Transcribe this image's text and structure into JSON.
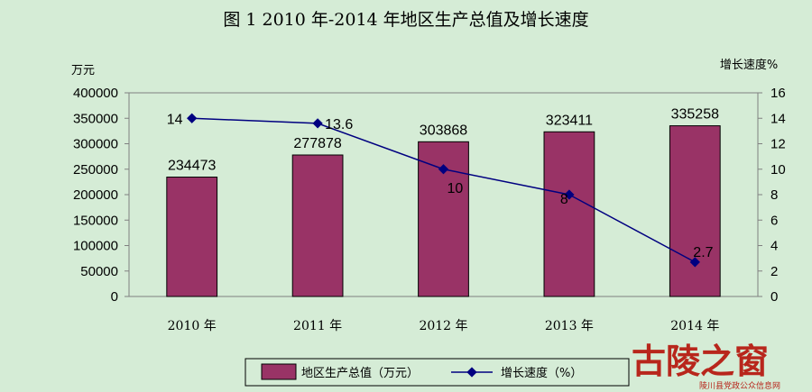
{
  "chart_data": {
    "type": "bar",
    "title": "图 1 2010 年-2014 年地区生产总值及增长速度",
    "categories": [
      "2010 年",
      "2011 年",
      "2012 年",
      "2013 年",
      "2014 年"
    ],
    "y_left_unit": "万元",
    "y_right_unit": "增长速度%",
    "ylim_left": [
      0,
      400000
    ],
    "ylim_right": [
      0,
      16
    ],
    "left_ticks": [
      "0",
      "50000",
      "100000",
      "150000",
      "200000",
      "250000",
      "300000",
      "350000",
      "400000"
    ],
    "right_ticks": [
      "0",
      "2",
      "4",
      "6",
      "8",
      "10",
      "12",
      "14",
      "16"
    ],
    "series": [
      {
        "name": "地区生产总值（万元）",
        "type": "bar",
        "axis": "left",
        "values": [
          234473,
          277878,
          303868,
          323411,
          335258
        ],
        "labels": [
          "234473",
          "277878",
          "303868",
          "323411",
          "335258"
        ]
      },
      {
        "name": "增长速度（%）",
        "type": "line",
        "axis": "right",
        "values": [
          14,
          13.6,
          10,
          8,
          2.7
        ],
        "labels": [
          "14",
          "13.6",
          "10",
          "8",
          "2.7"
        ]
      }
    ],
    "grid": false,
    "legend_position": "bottom"
  },
  "colors": {
    "background": "#d5ecd6",
    "plot_background": "#d5ecd6",
    "bar_fill": "#993366",
    "line_color": "#000080",
    "watermark": "#b8261c"
  },
  "watermark": {
    "text": "古陵之窗",
    "subtext": "陵川县党政公众信息网"
  }
}
